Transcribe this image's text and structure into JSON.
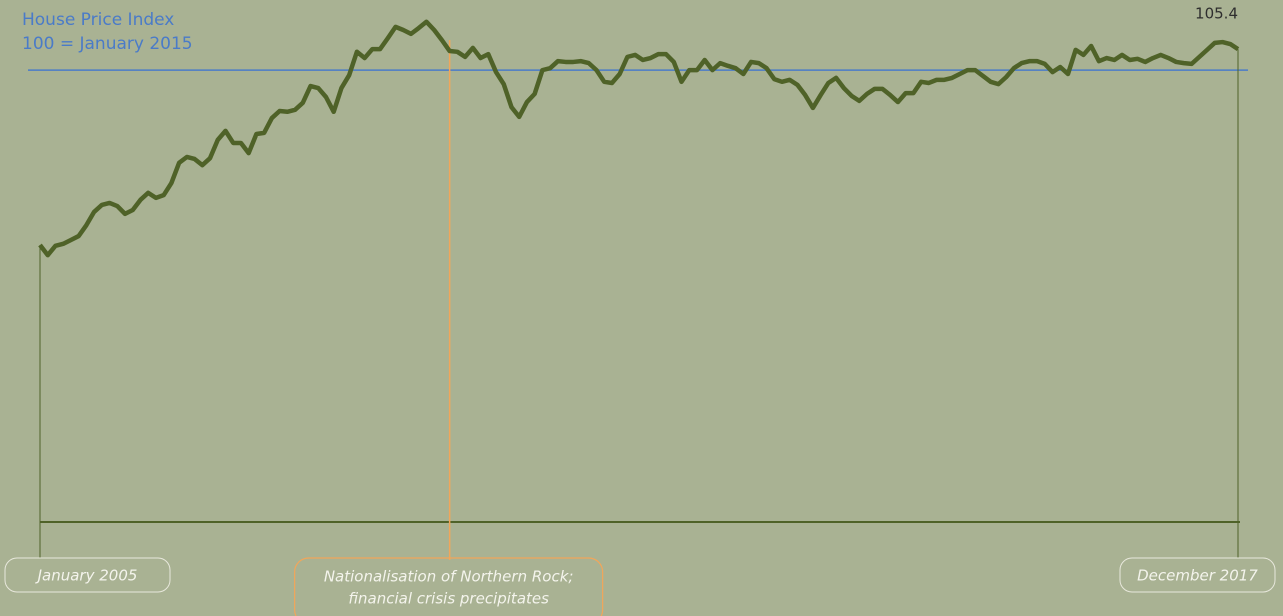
{
  "chart_data": {
    "type": "line",
    "title": "House Price Index",
    "subtitle": "100 = January 2015",
    "categories": [
      "January 2005",
      null,
      null,
      null,
      null,
      null,
      null,
      null,
      null,
      null,
      null,
      null,
      null,
      null,
      null,
      null,
      null,
      null,
      null,
      null,
      null,
      null,
      null,
      null,
      null,
      null,
      null,
      null,
      null,
      null,
      null,
      null,
      null,
      null,
      null,
      null,
      null,
      null,
      null,
      null,
      null,
      null,
      null,
      null,
      null,
      null,
      null,
      null,
      null,
      null,
      null,
      null,
      null,
      null,
      null,
      null,
      null,
      null,
      null,
      null,
      null,
      null,
      null,
      null,
      null,
      null,
      null,
      null,
      null,
      null,
      null,
      null,
      null,
      null,
      null,
      null,
      null,
      null,
      null,
      null,
      null,
      null,
      null,
      null,
      null,
      null,
      null,
      null,
      null,
      null,
      null,
      null,
      null,
      null,
      null,
      null,
      null,
      null,
      null,
      null,
      null,
      null,
      null,
      null,
      null,
      null,
      null,
      null,
      null,
      null,
      null,
      null,
      null,
      null,
      null,
      null,
      null,
      null,
      null,
      null,
      null,
      null,
      null,
      null,
      null,
      null,
      null,
      null,
      null,
      null,
      null,
      null,
      null,
      null,
      null,
      null,
      null,
      null,
      null,
      null,
      null,
      null,
      null,
      null,
      null,
      null,
      null,
      null,
      null,
      null,
      null,
      null,
      null,
      null,
      null,
      "December 2017"
    ],
    "series": [
      {
        "name": "House Price Index",
        "color": "#4f6228",
        "values": [
          55.1,
          52.5,
          54.9,
          55.4,
          56.4,
          57.4,
          60.2,
          63.6,
          65.4,
          65.9,
          65.1,
          63.1,
          64.1,
          66.7,
          68.5,
          67.2,
          67.9,
          71.0,
          76.2,
          77.7,
          77.2,
          75.6,
          77.4,
          82.1,
          84.4,
          81.3,
          81.3,
          78.7,
          83.6,
          83.9,
          87.7,
          89.5,
          89.3,
          89.8,
          91.6,
          95.9,
          95.4,
          93.1,
          89.3,
          95.4,
          98.7,
          104.7,
          103.1,
          105.4,
          105.4,
          108.2,
          111.1,
          110.3,
          109.3,
          110.8,
          112.4,
          110.3,
          107.7,
          104.9,
          104.7,
          103.4,
          105.7,
          103.1,
          104.1,
          99.5,
          96.4,
          90.5,
          88.0,
          91.8,
          93.9,
          100.0,
          100.5,
          102.3,
          102.1,
          102.1,
          102.3,
          101.8,
          100.0,
          97.0,
          96.7,
          99.0,
          103.4,
          103.9,
          102.6,
          103.1,
          104.1,
          104.1,
          102.1,
          97.0,
          100.0,
          100.0,
          102.6,
          100.0,
          101.8,
          101.1,
          100.5,
          99.0,
          102.1,
          101.8,
          100.5,
          97.7,
          97.0,
          97.5,
          96.2,
          93.6,
          90.3,
          93.6,
          96.7,
          98.0,
          95.4,
          93.4,
          92.1,
          93.9,
          95.2,
          95.2,
          93.6,
          91.8,
          94.1,
          94.1,
          97.0,
          96.7,
          97.5,
          97.5,
          98.0,
          99.0,
          100.0,
          100.0,
          98.5,
          97.0,
          96.4,
          98.2,
          100.5,
          101.8,
          102.3,
          102.3,
          101.6,
          99.5,
          100.8,
          99.0,
          105.2,
          103.9,
          106.2,
          102.3,
          103.1,
          102.6,
          103.9,
          102.6,
          102.9,
          102.1,
          103.1,
          103.9,
          103.1,
          102.1,
          101.8,
          101.6,
          103.4,
          105.2,
          107.0,
          107.2,
          106.7,
          105.4
        ]
      }
    ],
    "ylim": [
      -16,
      118
    ],
    "reference_line": {
      "value": 100,
      "color": "#4a7bc8"
    },
    "annotations": [
      {
        "x": 53,
        "text": [
          "Nationalisation of Northern Rock;",
          "financial crisis precipitates"
        ],
        "color": "#f2a65a"
      }
    ]
  }
}
